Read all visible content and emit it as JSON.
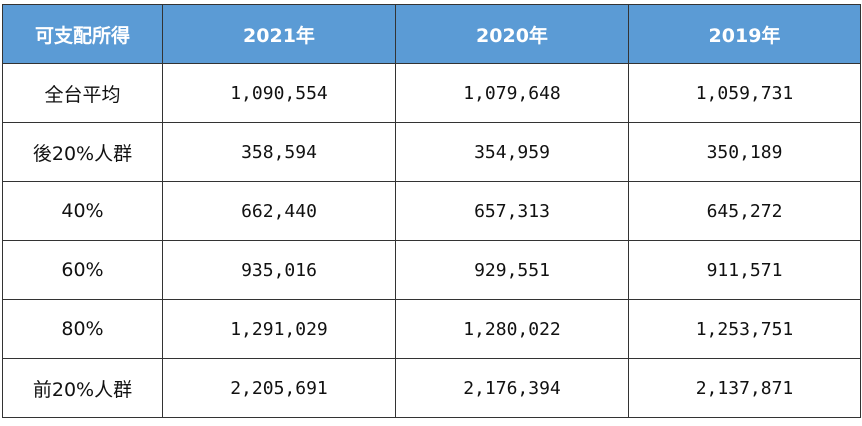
{
  "table": {
    "header": {
      "label": "可支配所得",
      "years": [
        "2021年",
        "2020年",
        "2019年"
      ]
    },
    "rows": [
      {
        "label": "全台平均",
        "values": [
          "1,090,554",
          "1,079,648",
          "1,059,731"
        ]
      },
      {
        "label": "後20%人群",
        "values": [
          "358,594",
          "354,959",
          "350,189"
        ]
      },
      {
        "label": "40%",
        "values": [
          "662,440",
          "657,313",
          "645,272"
        ]
      },
      {
        "label": "60%",
        "values": [
          "935,016",
          "929,551",
          "911,571"
        ]
      },
      {
        "label": "80%",
        "values": [
          "1,291,029",
          "1,280,022",
          "1,253,751"
        ]
      },
      {
        "label": "前20%人群",
        "values": [
          "2,205,691",
          "2,176,394",
          "2,137,871"
        ]
      }
    ],
    "colors": {
      "header_bg": "#5b9bd5",
      "header_text": "#ffffff",
      "border": "#333333"
    }
  }
}
